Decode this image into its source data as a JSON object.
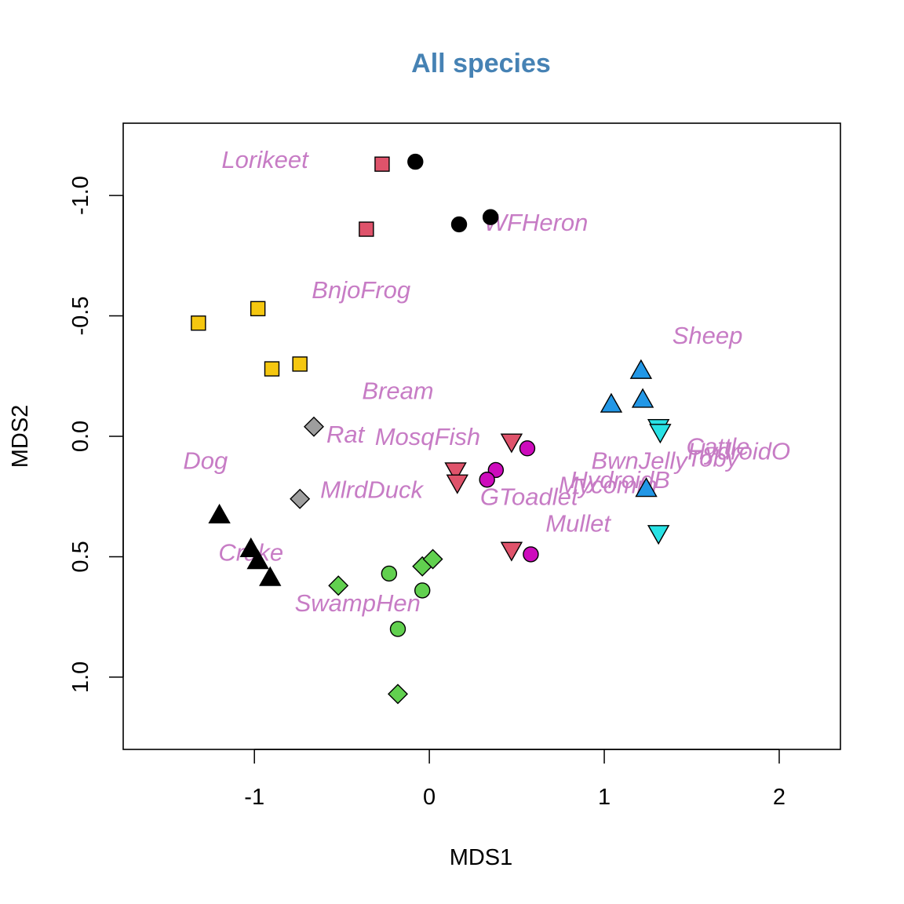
{
  "chart_data": {
    "type": "scatter",
    "title": "All species",
    "xlabel": "MDS1",
    "ylabel": "MDS2",
    "xlim": [
      -1.75,
      2.35
    ],
    "ylim": [
      -1.3,
      1.3
    ],
    "y_reversed": true,
    "x_ticks": [
      -1,
      0,
      1,
      2
    ],
    "x_tick_labels": [
      "-1",
      "0",
      "1",
      "2"
    ],
    "y_ticks": [
      -1.0,
      -0.5,
      0.0,
      0.5,
      1.0
    ],
    "y_tick_labels": [
      "-1.0",
      "-0.5",
      "0.0",
      "0.5",
      "1.0"
    ],
    "grid": false,
    "legend": "none",
    "colors": {
      "black": "#000000",
      "red": "#DF536B",
      "green": "#61D04F",
      "blue": "#2297E6",
      "cyan": "#28E2E5",
      "magenta": "#CD0BBC",
      "yellow": "#F5C710",
      "gray": "#9E9E9E",
      "label": "#C77CC5"
    },
    "points": [
      {
        "x": -0.08,
        "y": -1.14,
        "shape": "circle",
        "color": "black"
      },
      {
        "x": 0.35,
        "y": -0.91,
        "shape": "circle",
        "color": "black"
      },
      {
        "x": 0.17,
        "y": -0.88,
        "shape": "circle",
        "color": "black"
      },
      {
        "x": -0.27,
        "y": -1.13,
        "shape": "square",
        "color": "red"
      },
      {
        "x": -0.36,
        "y": -0.86,
        "shape": "square",
        "color": "red"
      },
      {
        "x": -1.32,
        "y": -0.47,
        "shape": "square",
        "color": "yellow"
      },
      {
        "x": -0.98,
        "y": -0.53,
        "shape": "square",
        "color": "yellow"
      },
      {
        "x": -0.9,
        "y": -0.28,
        "shape": "square",
        "color": "yellow"
      },
      {
        "x": -0.74,
        "y": -0.3,
        "shape": "square",
        "color": "yellow"
      },
      {
        "x": -0.66,
        "y": -0.04,
        "shape": "diamond",
        "color": "gray"
      },
      {
        "x": -0.74,
        "y": 0.26,
        "shape": "diamond",
        "color": "gray"
      },
      {
        "x": -1.2,
        "y": 0.33,
        "shape": "triangle-up",
        "color": "black"
      },
      {
        "x": -1.02,
        "y": 0.47,
        "shape": "triangle-up",
        "color": "black"
      },
      {
        "x": -0.98,
        "y": 0.52,
        "shape": "triangle-up",
        "color": "black"
      },
      {
        "x": -0.91,
        "y": 0.59,
        "shape": "triangle-up",
        "color": "black"
      },
      {
        "x": -0.52,
        "y": 0.62,
        "shape": "diamond",
        "color": "green"
      },
      {
        "x": -0.23,
        "y": 0.57,
        "shape": "circle",
        "color": "green"
      },
      {
        "x": -0.04,
        "y": 0.54,
        "shape": "diamond",
        "color": "green"
      },
      {
        "x": 0.02,
        "y": 0.51,
        "shape": "diamond",
        "color": "green"
      },
      {
        "x": -0.04,
        "y": 0.64,
        "shape": "circle",
        "color": "green"
      },
      {
        "x": -0.18,
        "y": 0.8,
        "shape": "circle",
        "color": "green"
      },
      {
        "x": -0.18,
        "y": 1.07,
        "shape": "diamond",
        "color": "green"
      },
      {
        "x": 0.47,
        "y": 0.02,
        "shape": "triangle-down",
        "color": "red"
      },
      {
        "x": 0.15,
        "y": 0.14,
        "shape": "triangle-down",
        "color": "red"
      },
      {
        "x": 0.16,
        "y": 0.19,
        "shape": "triangle-down",
        "color": "red"
      },
      {
        "x": 0.47,
        "y": 0.47,
        "shape": "triangle-down",
        "color": "red"
      },
      {
        "x": 0.56,
        "y": 0.05,
        "shape": "circle",
        "color": "magenta"
      },
      {
        "x": 0.38,
        "y": 0.14,
        "shape": "circle",
        "color": "magenta"
      },
      {
        "x": 0.33,
        "y": 0.18,
        "shape": "circle",
        "color": "magenta"
      },
      {
        "x": 0.58,
        "y": 0.49,
        "shape": "circle",
        "color": "magenta"
      },
      {
        "x": 1.21,
        "y": -0.27,
        "shape": "triangle-up",
        "color": "blue"
      },
      {
        "x": 1.22,
        "y": -0.15,
        "shape": "triangle-up",
        "color": "blue"
      },
      {
        "x": 1.04,
        "y": -0.13,
        "shape": "triangle-up",
        "color": "blue"
      },
      {
        "x": 1.24,
        "y": 0.22,
        "shape": "triangle-up",
        "color": "blue"
      },
      {
        "x": 1.31,
        "y": -0.04,
        "shape": "triangle-down",
        "color": "cyan"
      },
      {
        "x": 1.32,
        "y": -0.02,
        "shape": "triangle-down",
        "color": "cyan"
      },
      {
        "x": 1.31,
        "y": 0.4,
        "shape": "triangle-down",
        "color": "cyan"
      }
    ],
    "labels": [
      {
        "text": "Lorikeet",
        "x": -0.94,
        "y": -1.15
      },
      {
        "text": "WFHeron",
        "x": 0.61,
        "y": -0.89
      },
      {
        "text": "BnjoFrog",
        "x": -0.39,
        "y": -0.61
      },
      {
        "text": "Sheep",
        "x": 1.59,
        "y": -0.42
      },
      {
        "text": "Bream",
        "x": -0.18,
        "y": -0.19
      },
      {
        "text": "Rat",
        "x": -0.48,
        "y": -0.01
      },
      {
        "text": "MosqFish",
        "x": -0.01,
        "y": 0.0
      },
      {
        "text": "Dog",
        "x": -1.28,
        "y": 0.1
      },
      {
        "text": "Cattle",
        "x": 1.65,
        "y": 0.04
      },
      {
        "text": "HydroidO",
        "x": 1.77,
        "y": 0.06
      },
      {
        "text": "Toby",
        "x": 1.62,
        "y": 0.09
      },
      {
        "text": "BwnJelly",
        "x": 1.2,
        "y": 0.1
      },
      {
        "text": "MlrdDuck",
        "x": -0.33,
        "y": 0.22
      },
      {
        "text": "HydroidB",
        "x": 1.09,
        "y": 0.18
      },
      {
        "text": "Mycomm",
        "x": 1.02,
        "y": 0.2
      },
      {
        "text": "GToadlet",
        "x": 0.57,
        "y": 0.25
      },
      {
        "text": "Mullet",
        "x": 0.85,
        "y": 0.36
      },
      {
        "text": "Crake",
        "x": -1.02,
        "y": 0.48
      },
      {
        "text": "SwampHen",
        "x": -0.41,
        "y": 0.69
      }
    ]
  }
}
